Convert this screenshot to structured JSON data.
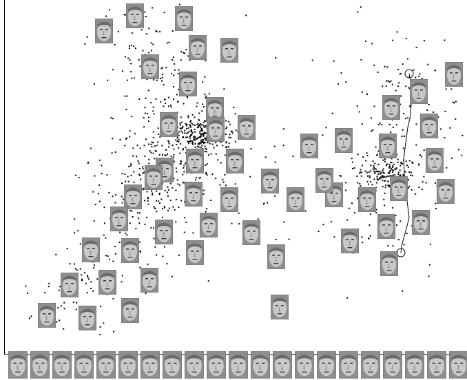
{
  "figure": {
    "kind": "face-image embedding scatter with trajectory",
    "point_color": "#000000",
    "face_tone": "grayscale",
    "axis_lines": [
      "left",
      "bottom"
    ],
    "cluster_count": 2,
    "trajectory": {
      "marker": "open-circle",
      "markers": 2,
      "color": "#000000"
    },
    "bottom_filmstrip_frames": 21,
    "face_thumbnails_in_plot": 52,
    "scatter_points_estimate": 1200
  }
}
